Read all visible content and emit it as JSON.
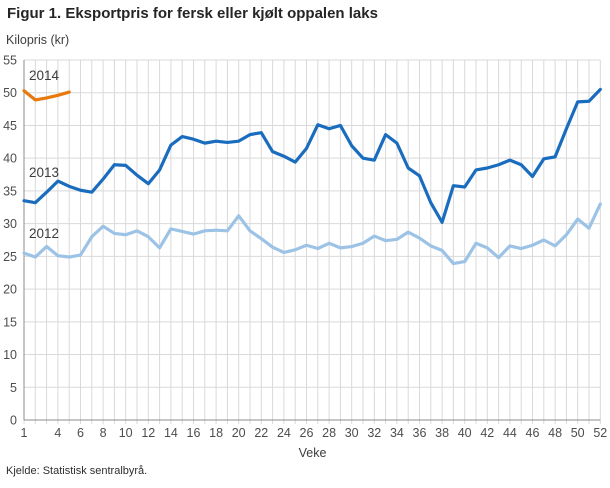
{
  "title": "Figur 1. Eksportpris for fersk eller kjølt oppalen laks",
  "source": "Kjelde: Statistisk sentralbyrå.",
  "colors": {
    "grid": "#d9d9d9",
    "axis": "#8c8c8c",
    "tick_text": "#4d4d4d",
    "s2014": "#e8790f",
    "s2013": "#1a6dbe",
    "s2012": "#9cc3e6"
  },
  "chart_data": {
    "type": "line",
    "title": "Figur 1. Eksportpris for fersk eller kjølt oppalen laks",
    "xlabel": "Veke",
    "ylabel": "Kilopris (kr)",
    "ylim": [
      0,
      55
    ],
    "y_ticks": [
      0,
      5,
      10,
      15,
      20,
      25,
      30,
      35,
      40,
      45,
      50,
      55
    ],
    "x_range": [
      1,
      52
    ],
    "x_tick_labels": [
      1,
      4,
      6,
      8,
      10,
      12,
      14,
      16,
      18,
      20,
      22,
      24,
      26,
      28,
      30,
      32,
      34,
      36,
      38,
      40,
      42,
      44,
      46,
      48,
      50,
      52
    ],
    "grid": true,
    "legend_position": "inline-labels",
    "series": [
      {
        "name": "2014",
        "color": "#e8790f",
        "start_week": 1,
        "values": [
          50.3,
          48.9,
          49.2,
          49.6,
          50.1
        ]
      },
      {
        "name": "2013",
        "color": "#1a6dbe",
        "start_week": 1,
        "values": [
          33.5,
          33.2,
          34.8,
          36.5,
          35.7,
          35.1,
          34.8,
          36.8,
          39.0,
          38.9,
          37.4,
          36.1,
          38.2,
          42.0,
          43.3,
          42.9,
          42.3,
          42.6,
          42.4,
          42.6,
          43.6,
          43.9,
          41.0,
          40.3,
          39.4,
          41.5,
          45.1,
          44.5,
          45.0,
          41.9,
          40.0,
          39.7,
          43.6,
          42.3,
          38.5,
          37.3,
          33.2,
          30.2,
          35.8,
          35.6,
          38.2,
          38.5,
          39.0,
          39.7,
          39.0,
          37.2,
          39.9,
          40.2,
          44.5,
          48.6,
          48.7,
          50.5
        ]
      },
      {
        "name": "2012",
        "color": "#9cc3e6",
        "start_week": 1,
        "values": [
          25.5,
          24.9,
          26.5,
          25.1,
          24.9,
          25.2,
          28.0,
          29.6,
          28.5,
          28.3,
          28.9,
          28.0,
          26.3,
          29.2,
          28.8,
          28.4,
          28.9,
          29.0,
          28.9,
          31.2,
          28.9,
          27.7,
          26.4,
          25.6,
          26.0,
          26.7,
          26.2,
          27.0,
          26.3,
          26.5,
          27.0,
          28.1,
          27.4,
          27.6,
          28.7,
          27.8,
          26.6,
          25.9,
          23.9,
          24.2,
          27.0,
          26.3,
          24.8,
          26.6,
          26.2,
          26.7,
          27.5,
          26.6,
          28.3,
          30.7,
          29.3,
          33.0
        ]
      }
    ]
  }
}
